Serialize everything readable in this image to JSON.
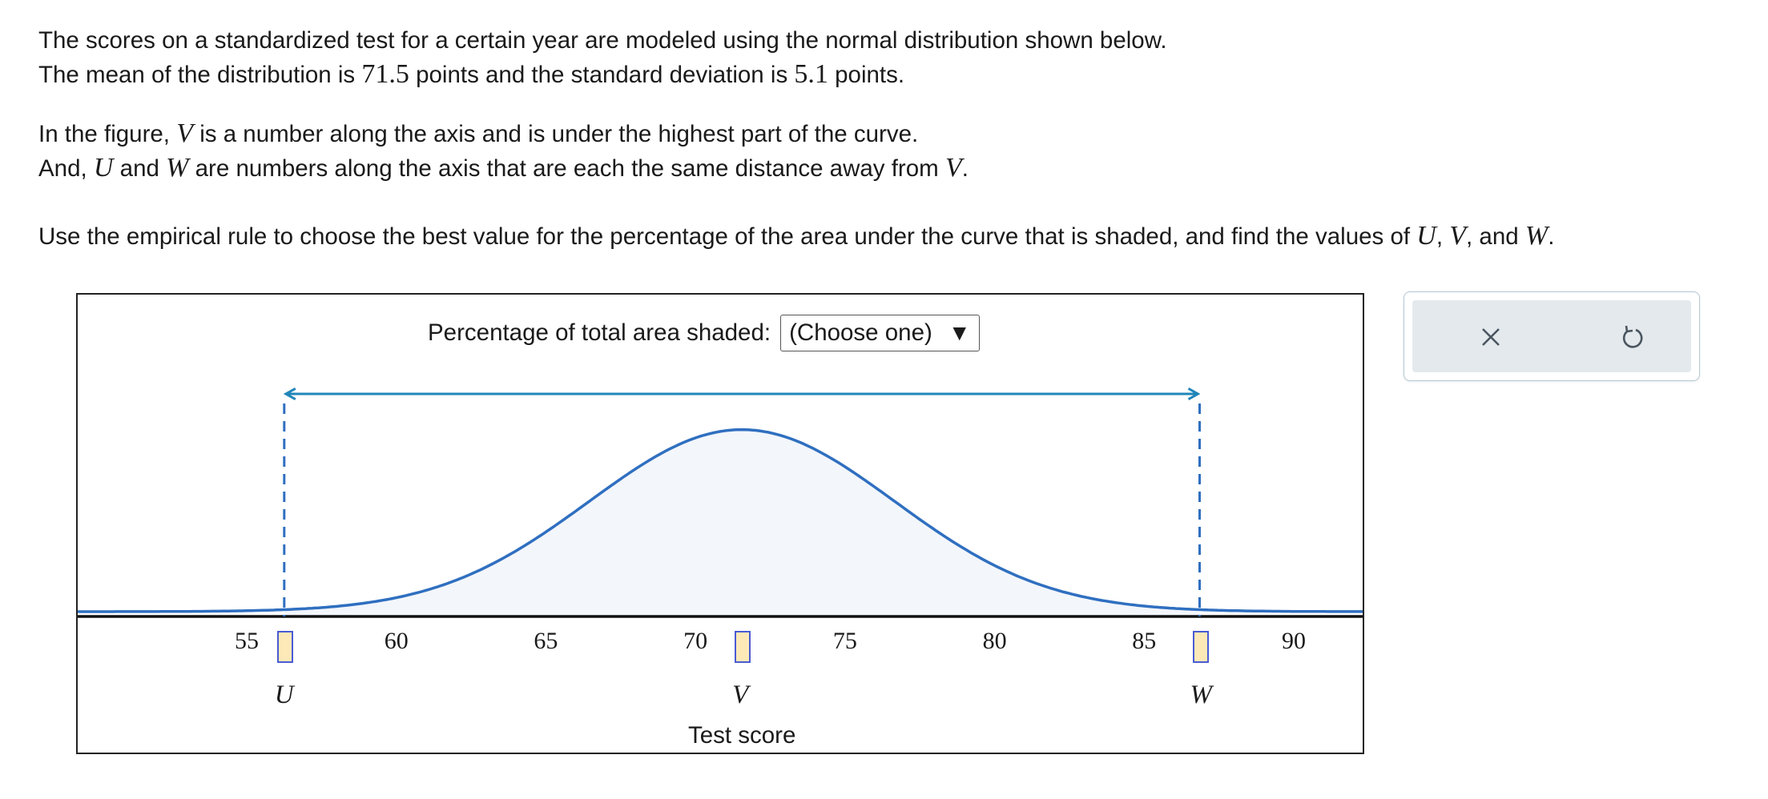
{
  "problem": {
    "line1": "The scores on a standardized test for a certain year are modeled using the normal distribution shown below.",
    "line2_a": "The mean of the distribution is",
    "mean": "71.5",
    "line2_b": "points and the standard deviation is",
    "sd": "5.1",
    "line2_c": "points.",
    "line3_a": "In the figure,",
    "var_v": "V",
    "line3_b": "is a number along the axis and is under the highest part of the curve.",
    "line4_a": "And,",
    "var_u": "U",
    "line4_b": "and",
    "var_w": "W",
    "line4_c": "are numbers along the axis that are each the same distance away from",
    "line4_d": ".",
    "line5_a": "Use the empirical rule to choose the best value for the percentage of the area under the curve that is shaded, and find the values of",
    "comma1": ",",
    "comma2": ", and",
    "period": "."
  },
  "figure": {
    "percentage_label": "Percentage of total area shaded:",
    "select_value": "(Choose one)",
    "select_arrow": "▼",
    "xlabel": "Test score",
    "box_labels": {
      "u": "U",
      "v": "V",
      "w": "W"
    },
    "answers": {
      "u": "",
      "v": "",
      "w": ""
    }
  },
  "chart_data": {
    "type": "area",
    "distribution": "normal",
    "mean": 71.5,
    "sd": 5.1,
    "xlim": [
      50,
      92
    ],
    "xticks": [
      55,
      60,
      65,
      70,
      75,
      80,
      85,
      90
    ],
    "shaded_range": [
      56.2,
      86.8
    ],
    "markers": [
      {
        "label": "U",
        "x": 56.2
      },
      {
        "label": "V",
        "x": 71.5
      },
      {
        "label": "W",
        "x": 86.8
      }
    ],
    "xlabel": "Test score",
    "colors": {
      "curve": "#2f6fc0",
      "fill": "#f3f6fb",
      "arrow": "#1f86b8",
      "dash": "#2f6fc0"
    }
  },
  "tools": {
    "clear_icon": "close-icon",
    "reset_icon": "undo-icon",
    "clear_glyph": "✕"
  }
}
